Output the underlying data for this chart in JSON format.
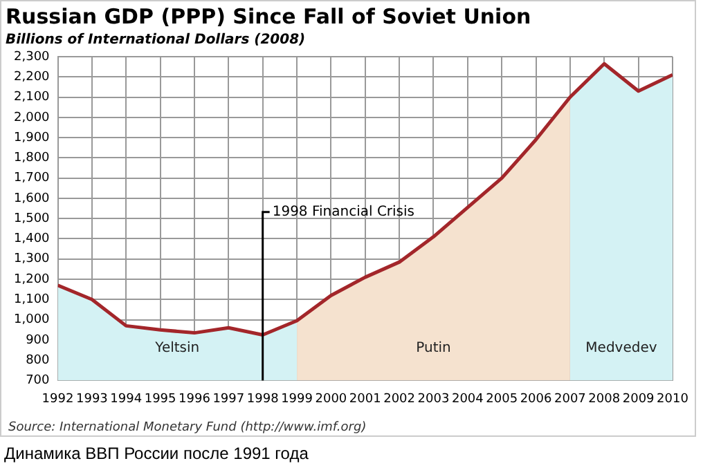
{
  "chart_data": {
    "type": "line",
    "title": "Russian GDP (PPP) Since Fall of Soviet Union",
    "subtitle": "Billions of International Dollars (2008)",
    "x": [
      1992,
      1993,
      1994,
      1995,
      1996,
      1997,
      1998,
      1999,
      2000,
      2001,
      2002,
      2003,
      2004,
      2005,
      2006,
      2007,
      2008,
      2009,
      2010
    ],
    "series": [
      {
        "name": "Yeltsin",
        "type": "area",
        "color": "#d4f2f4",
        "x": [
          1992,
          1993,
          1994,
          1995,
          1996,
          1997,
          1998,
          1999
        ],
        "values": [
          1170,
          1100,
          970,
          950,
          935,
          960,
          925,
          995
        ]
      },
      {
        "name": "Putin",
        "type": "area",
        "color": "#f5e2cf",
        "x": [
          1999,
          2000,
          2001,
          2002,
          2003,
          2004,
          2005,
          2006,
          2007
        ],
        "values": [
          995,
          1120,
          1210,
          1285,
          1410,
          1555,
          1700,
          1890,
          2100
        ]
      },
      {
        "name": "Medvedev",
        "type": "area",
        "color": "#d4f2f4",
        "x": [
          2007,
          2008,
          2009,
          2010
        ],
        "values": [
          2100,
          2265,
          2130,
          2210
        ]
      },
      {
        "color": "#a3262a",
        "values": [
          1170,
          1100,
          970,
          950,
          935,
          960,
          925,
          995,
          1120,
          1210,
          1285,
          1410,
          1555,
          1700,
          1890,
          2100,
          2265,
          2130,
          2210
        ]
      }
    ],
    "xlim": [
      1992,
      2010
    ],
    "xticks": [
      1992,
      1993,
      1994,
      1995,
      1996,
      1997,
      1998,
      1999,
      2000,
      2001,
      2002,
      2003,
      2004,
      2005,
      2006,
      2007,
      2008,
      2009,
      2010
    ],
    "ylim": [
      700,
      2300
    ],
    "yticks": [
      700,
      800,
      900,
      {
        "value": 1000,
        "label": "1,000"
      },
      {
        "value": 1100,
        "label": "1,100"
      },
      {
        "value": 1200,
        "label": "1,200"
      },
      {
        "value": 1300,
        "label": "1,300"
      },
      {
        "value": 1400,
        "label": "1,400"
      },
      {
        "value": 1500,
        "label": "1,500"
      },
      {
        "value": 1600,
        "label": "1,600"
      },
      {
        "value": 1700,
        "label": "1,700"
      },
      {
        "value": 1800,
        "label": "1,800"
      },
      {
        "value": 1900,
        "label": "1,900"
      },
      {
        "value": 2000,
        "label": "2,000"
      },
      {
        "value": 2100,
        "label": "2,100"
      },
      {
        "value": 2200,
        "label": "2,200"
      },
      {
        "value": 2300,
        "label": "2,300"
      }
    ],
    "grid": true,
    "legend": false,
    "marker": "none",
    "line_style": "solid",
    "ref_lines": [
      {
        "axis": "x",
        "value": 1998,
        "label": "1998 Financial Crisis",
        "color": "#000000"
      }
    ],
    "annotations": [
      "Source: International Monetary Fund (http://www.imf.org)",
      "Динамика ВВП России после 1991 года"
    ]
  }
}
